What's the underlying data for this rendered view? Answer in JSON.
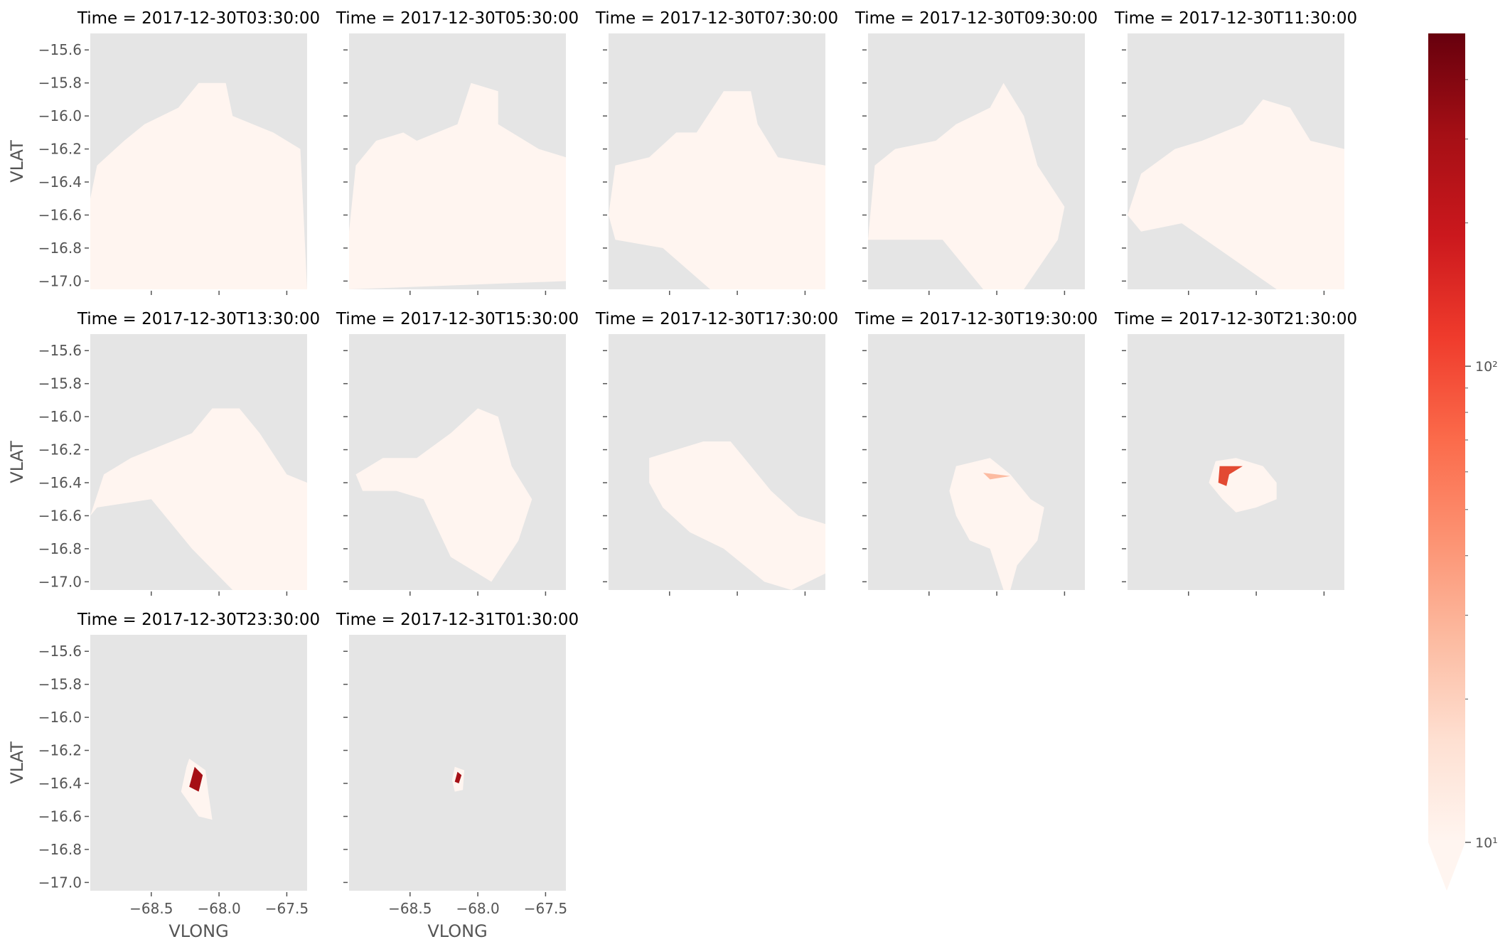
{
  "chart_data": {
    "type": "heatmap",
    "layout": "faceted-grid",
    "facet_key": "Time",
    "facet_titles": [
      "Time = 2017-12-30T03:30:00",
      "Time = 2017-12-30T05:30:00",
      "Time = 2017-12-30T07:30:00",
      "Time = 2017-12-30T09:30:00",
      "Time = 2017-12-30T11:30:00",
      "Time = 2017-12-30T13:30:00",
      "Time = 2017-12-30T15:30:00",
      "Time = 2017-12-30T17:30:00",
      "Time = 2017-12-30T19:30:00",
      "Time = 2017-12-30T21:30:00",
      "Time = 2017-12-30T23:30:00",
      "Time = 2017-12-31T01:30:00"
    ],
    "xlabel": "VLONG",
    "ylabel": "VLAT",
    "xlim": [
      -68.95,
      -67.35
    ],
    "ylim": [
      -17.05,
      -15.5
    ],
    "xticks": [
      -68.5,
      -68.0,
      -67.5
    ],
    "xtick_labels": [
      "−68.5",
      "−68.0",
      "−67.5"
    ],
    "yticks": [
      -15.6,
      -15.8,
      -16.0,
      -16.2,
      -16.4,
      -16.6,
      -16.8,
      -17.0
    ],
    "ytick_labels": [
      "−15.6",
      "−15.8",
      "−16.0",
      "−16.2",
      "−16.4",
      "−16.6",
      "−16.8",
      "−17.0"
    ],
    "colorbar": {
      "cmap": "Reds",
      "scale": "log",
      "range": [
        10,
        500
      ],
      "extend": "min",
      "tick_labels": [
        "10¹",
        "10²"
      ]
    },
    "background_color": "#e5e5e5",
    "colors": {
      "low": "#fff5f0",
      "high": "#67000d"
    }
  }
}
